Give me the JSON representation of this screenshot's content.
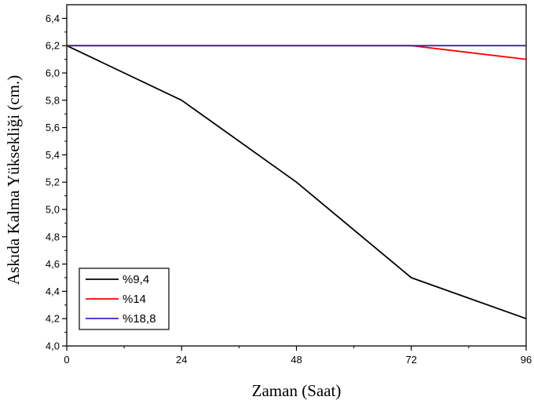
{
  "chart_data": {
    "type": "line",
    "xlabel": "Zaman (Saat)",
    "ylabel": "Askıda Kalma Yüksekliği (cm.)",
    "x": [
      0,
      24,
      48,
      72,
      96
    ],
    "xlim": [
      0,
      96
    ],
    "ylim": [
      4.0,
      6.5
    ],
    "xticks": [
      "0",
      "24",
      "48",
      "72",
      "96"
    ],
    "yticks": [
      "4,0",
      "4,2",
      "4,4",
      "4,6",
      "4,8",
      "5,0",
      "5,2",
      "5,4",
      "5,6",
      "5,8",
      "6,0",
      "6,2",
      "6,4"
    ],
    "grid": false,
    "legend_position": "bottom-left",
    "series": [
      {
        "name": "%9,4",
        "color": "#000000",
        "values": [
          6.2,
          5.8,
          5.2,
          4.5,
          4.2
        ]
      },
      {
        "name": "%14",
        "color": "#ff0000",
        "values": [
          6.2,
          6.2,
          6.2,
          6.2,
          6.1
        ]
      },
      {
        "name": "%18,8",
        "color": "#3b1fd6",
        "values": [
          6.2,
          6.2,
          6.2,
          6.2,
          6.2
        ]
      }
    ]
  }
}
